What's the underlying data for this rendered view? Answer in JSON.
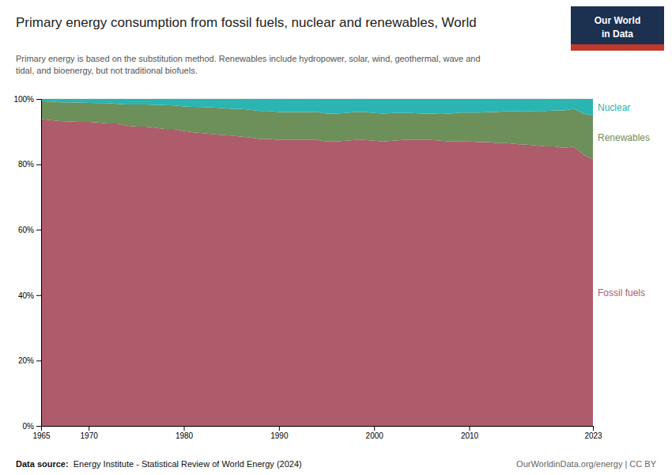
{
  "chart_data": {
    "type": "area",
    "stacked": true,
    "grid": true,
    "title": "Primary energy consumption from fossil fuels, nuclear and renewables, World",
    "subtitle": [
      "Primary energy is based on the substitution method. Renewables include hydropower, solar, wind, geothermal, wave and",
      "tidal, and bioenergy, but not traditional biofuels."
    ],
    "annotations": [
      "Data source: ",
      "Energy Institute - Statistical Review of World Energy (2024)",
      "OurWorldinData.org/energy | CC BY",
      "Our World",
      "in Data"
    ],
    "x": [
      1965,
      1966,
      1967,
      1968,
      1969,
      1970,
      1971,
      1972,
      1973,
      1974,
      1975,
      1976,
      1977,
      1978,
      1979,
      1980,
      1981,
      1982,
      1983,
      1984,
      1985,
      1986,
      1987,
      1988,
      1989,
      1990,
      1991,
      1992,
      1993,
      1994,
      1995,
      1996,
      1997,
      1998,
      1999,
      2000,
      2001,
      2002,
      2003,
      2004,
      2005,
      2006,
      2007,
      2008,
      2009,
      2010,
      2011,
      2012,
      2013,
      2014,
      2015,
      2016,
      2017,
      2018,
      2019,
      2020,
      2021,
      2022,
      2023
    ],
    "series": [
      {
        "name": "Fossil fuels",
        "color": "#ae5b6c",
        "values": [
          93.8,
          93.5,
          93.2,
          93.1,
          93.0,
          93.0,
          92.8,
          92.5,
          92.5,
          91.8,
          91.5,
          91.5,
          91.2,
          90.8,
          90.8,
          90.2,
          89.8,
          89.5,
          89.2,
          89.0,
          88.8,
          88.5,
          88.2,
          87.8,
          87.8,
          87.5,
          87.5,
          87.5,
          87.5,
          87.5,
          87.0,
          87.0,
          87.2,
          87.5,
          87.5,
          87.2,
          87.0,
          87.2,
          87.5,
          87.5,
          87.5,
          87.5,
          87.2,
          87.0,
          87.0,
          87.0,
          86.8,
          86.8,
          86.5,
          86.5,
          86.2,
          86.0,
          85.8,
          85.5,
          85.5,
          85.0,
          85.5,
          83.0,
          81.5
        ]
      },
      {
        "name": "Renewables",
        "color": "#6d8f5a",
        "values": [
          5.5,
          5.7,
          5.8,
          5.9,
          5.9,
          5.8,
          5.9,
          6.2,
          6.0,
          6.5,
          6.8,
          6.8,
          7.0,
          7.3,
          7.2,
          7.5,
          7.8,
          8.0,
          8.2,
          8.2,
          8.2,
          8.5,
          8.5,
          8.5,
          8.5,
          8.5,
          8.5,
          8.5,
          8.5,
          8.5,
          8.5,
          8.5,
          8.5,
          8.5,
          8.5,
          8.5,
          8.5,
          8.5,
          8.2,
          8.2,
          8.0,
          8.0,
          8.2,
          8.5,
          8.8,
          8.8,
          9.0,
          9.2,
          9.5,
          9.8,
          10.0,
          10.2,
          10.5,
          10.8,
          11.0,
          11.5,
          11.5,
          12.5,
          13.5
        ]
      },
      {
        "name": "Nuclear",
        "color": "#2ab5b2",
        "values": [
          0.7,
          0.8,
          1.0,
          1.0,
          1.1,
          1.2,
          1.3,
          1.3,
          1.5,
          1.7,
          1.7,
          1.7,
          1.8,
          1.9,
          2.0,
          2.3,
          2.4,
          2.5,
          2.6,
          2.8,
          3.0,
          3.0,
          3.3,
          3.7,
          3.7,
          4.0,
          4.0,
          4.0,
          4.0,
          4.0,
          4.5,
          4.5,
          4.3,
          4.0,
          4.0,
          4.3,
          4.5,
          4.3,
          4.3,
          4.3,
          4.5,
          4.5,
          4.6,
          4.5,
          4.2,
          4.2,
          4.2,
          4.0,
          4.0,
          3.7,
          3.8,
          3.8,
          3.7,
          3.7,
          3.5,
          3.5,
          3.0,
          4.5,
          5.0
        ]
      }
    ],
    "xlim": [
      1965,
      2023
    ],
    "xticks": [
      1965,
      1970,
      1980,
      1990,
      2000,
      2010,
      2023
    ],
    "ylim": [
      0,
      100
    ],
    "yticks": [
      {
        "value": 0,
        "label": "0%"
      },
      {
        "value": 20,
        "label": "20%"
      },
      {
        "value": 40,
        "label": "40%"
      },
      {
        "value": 60,
        "label": "60%"
      },
      {
        "value": 80,
        "label": "80%"
      },
      {
        "value": 100,
        "label": "100%"
      }
    ]
  }
}
